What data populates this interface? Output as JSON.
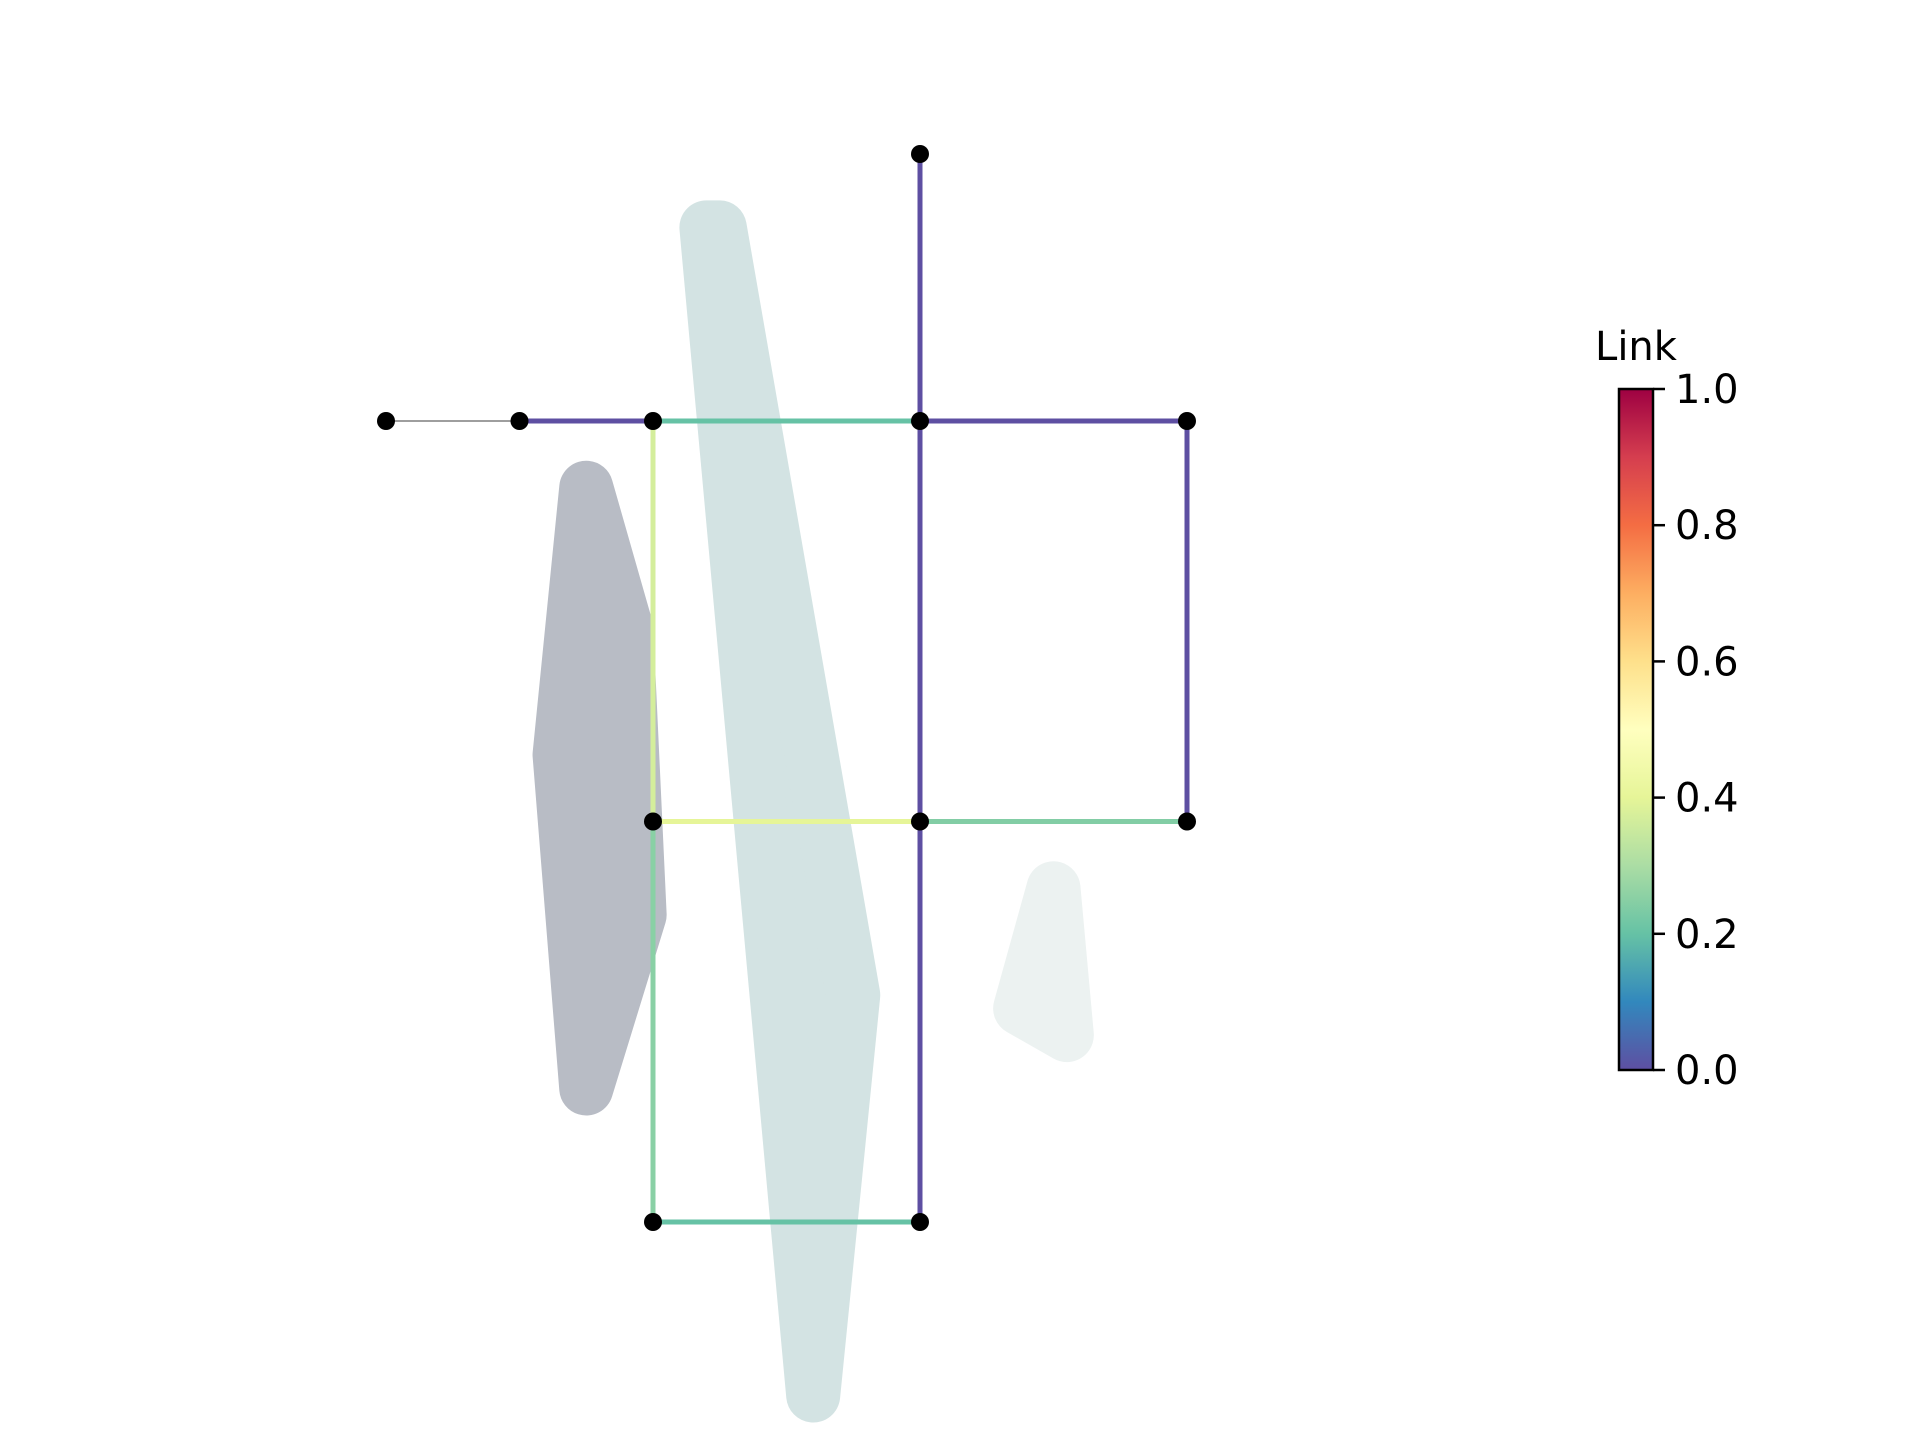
{
  "colorbar": {
    "title": "Link",
    "min": 0.0,
    "max": 1.0,
    "ticks": [
      "0.0",
      "0.2",
      "0.4",
      "0.6",
      "0.8",
      "1.0"
    ],
    "tick_values": [
      0.0,
      0.2,
      0.4,
      0.6,
      0.8,
      1.0
    ],
    "colormap": "Spectral_r",
    "stops": [
      "#5e4fa2",
      "#3288bd",
      "#66c2a5",
      "#abdda4",
      "#e6f598",
      "#ffffbf",
      "#fee08b",
      "#fdae61",
      "#f46d43",
      "#d53e4f",
      "#9e0142"
    ]
  },
  "network": {
    "nodes": [
      {
        "id": "n1",
        "x": 0,
        "y": 4
      },
      {
        "id": "n2",
        "x": 1,
        "y": 4
      },
      {
        "id": "n3",
        "x": 2,
        "y": 4
      },
      {
        "id": "n4",
        "x": 4,
        "y": 4
      },
      {
        "id": "n5",
        "x": 6,
        "y": 4
      },
      {
        "id": "n6",
        "x": 4,
        "y": 6
      },
      {
        "id": "n7",
        "x": 2,
        "y": 1
      },
      {
        "id": "n8",
        "x": 4,
        "y": 1
      },
      {
        "id": "n9",
        "x": 6,
        "y": 1
      },
      {
        "id": "n10",
        "x": 2,
        "y": -2
      },
      {
        "id": "n11",
        "x": 4,
        "y": -2
      }
    ],
    "links": [
      {
        "from": "n1",
        "to": "n2",
        "value": null,
        "color": "#7f7f7f"
      },
      {
        "from": "n2",
        "to": "n3",
        "value": 0.0
      },
      {
        "from": "n3",
        "to": "n4",
        "value": 0.2
      },
      {
        "from": "n4",
        "to": "n5",
        "value": 0.0
      },
      {
        "from": "n6",
        "to": "n4",
        "value": 0.0
      },
      {
        "from": "n4",
        "to": "n8",
        "value": 0.0
      },
      {
        "from": "n8",
        "to": "n11",
        "value": 0.0
      },
      {
        "from": "n5",
        "to": "n9",
        "value": 0.0
      },
      {
        "from": "n3",
        "to": "n7",
        "value": 0.37
      },
      {
        "from": "n7",
        "to": "n8",
        "value": 0.4
      },
      {
        "from": "n8",
        "to": "n9",
        "value": 0.24
      },
      {
        "from": "n7",
        "to": "n10",
        "value": 0.25
      },
      {
        "from": "n10",
        "to": "n11",
        "value": 0.2
      }
    ]
  },
  "shapes": [
    {
      "name": "gray-region",
      "color": "#b8bcc5",
      "points": [
        [
          1.5,
          3.5
        ],
        [
          1.8,
          2.45
        ],
        [
          1.9,
          0.3
        ],
        [
          1.5,
          -1.0
        ],
        [
          1.3,
          1.5
        ]
      ]
    },
    {
      "name": "light-teal-region",
      "color": "#d3e3e3",
      "points": [
        [
          2.5,
          5.45
        ],
        [
          3.5,
          -0.3
        ],
        [
          3.2,
          -3.3
        ],
        [
          2.4,
          5.45
        ]
      ]
    },
    {
      "name": "pale-region",
      "color": "#ecf2f1",
      "points": [
        [
          5.0,
          0.5
        ],
        [
          5.1,
          -0.6
        ],
        [
          4.75,
          -0.4
        ]
      ]
    }
  ]
}
